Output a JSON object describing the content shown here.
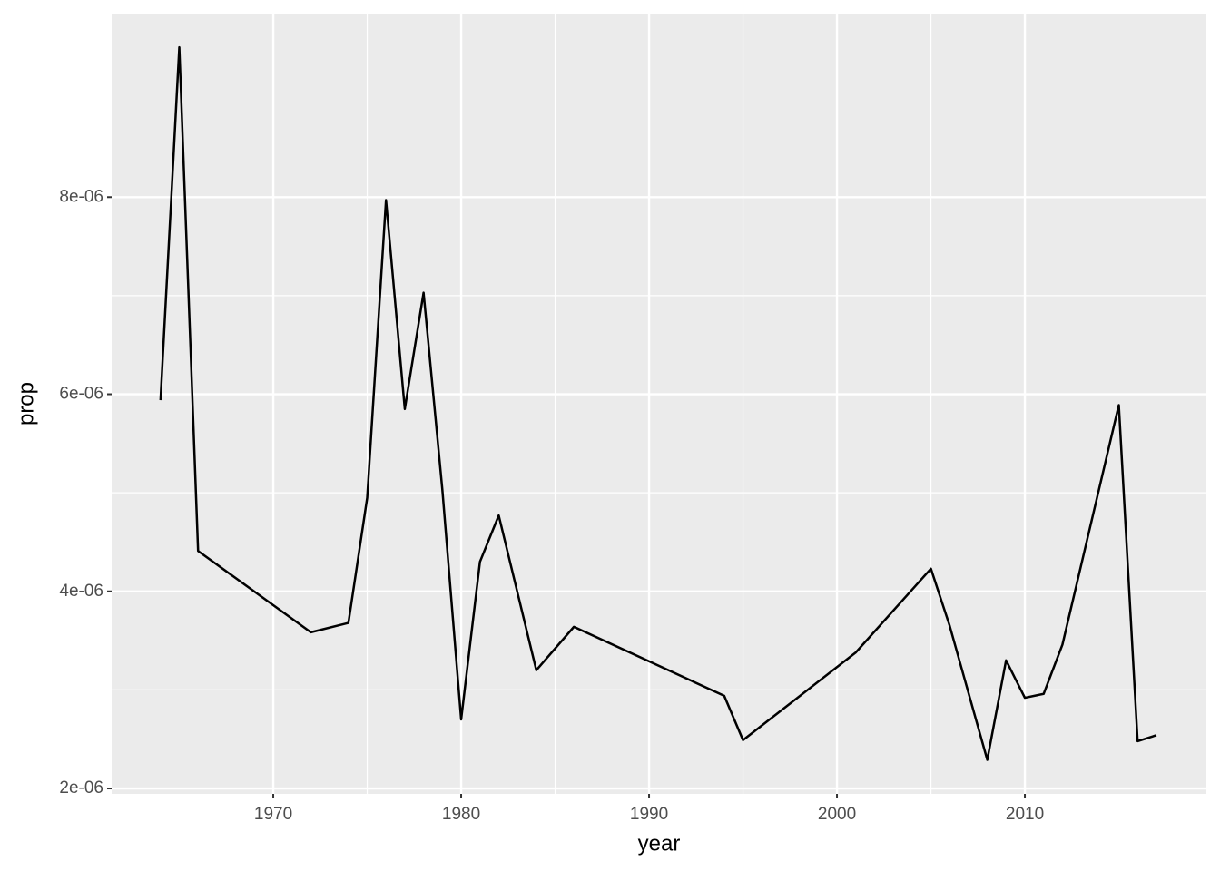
{
  "chart_data": {
    "type": "line",
    "x_label": "year",
    "y_label": "prop",
    "x": [
      1964,
      1965,
      1966,
      1972,
      1974,
      1975,
      1976,
      1977,
      1978,
      1979,
      1980,
      1981,
      1982,
      1984,
      1986,
      1994,
      1995,
      2001,
      2005,
      2006,
      2008,
      2009,
      2010,
      2011,
      2012,
      2015,
      2016,
      2017
    ],
    "series": [
      {
        "color": "#000000",
        "values": [
          5.94e-06,
          9.52e-06,
          4.41e-06,
          3.585e-06,
          3.68e-06,
          4.95e-06,
          7.97e-06,
          5.85e-06,
          7.03e-06,
          5.03e-06,
          2.7e-06,
          4.3e-06,
          4.77e-06,
          3.2e-06,
          3.64e-06,
          2.94e-06,
          2.49e-06,
          3.38e-06,
          4.23e-06,
          3.65e-06,
          2.29e-06,
          3.3e-06,
          2.92e-06,
          2.96e-06,
          3.46e-06,
          5.89e-06,
          2.48e-06,
          2.54e-06
        ]
      }
    ],
    "xlim": [
      1961.4,
      2019.66
    ],
    "ylim": [
      1.945e-06,
      9.862e-06
    ],
    "xticks": [
      1970,
      1980,
      1990,
      2000,
      2010
    ],
    "yticks": [
      {
        "value": 2e-06,
        "label": "2e-06"
      },
      {
        "value": 4e-06,
        "label": "4e-06"
      },
      {
        "value": 6e-06,
        "label": "6e-06"
      },
      {
        "value": 8e-06,
        "label": "8e-06"
      }
    ],
    "grid": true,
    "minor_grid": true,
    "panel_color": "#ebebeb"
  }
}
